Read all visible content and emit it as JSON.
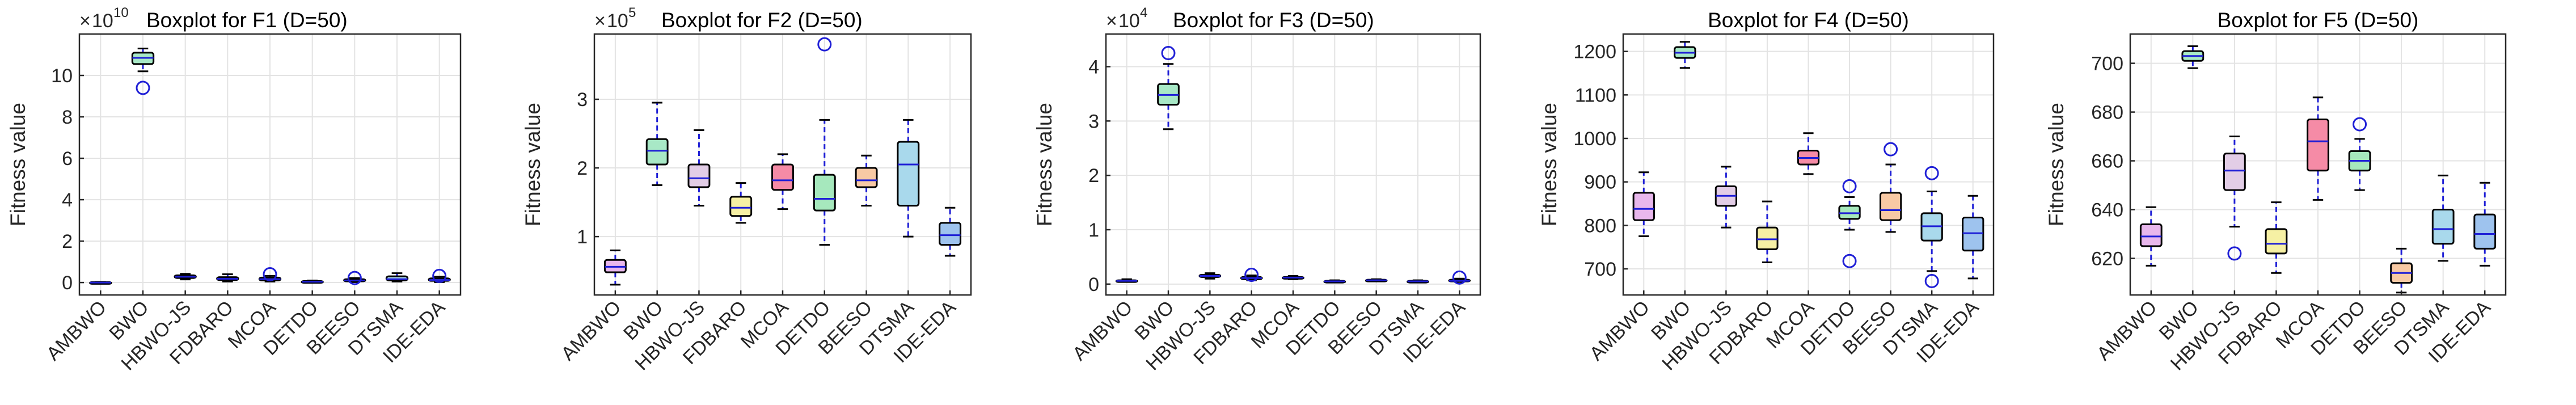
{
  "figure": {
    "ylabel": "Fitness value",
    "algorithms": [
      "AMBWO",
      "BWO",
      "HBWO-JS",
      "FDBARO",
      "MCOA",
      "DETDO",
      "BEESO",
      "DTSMA",
      "IDE-EDA"
    ],
    "box_colors": [
      "#e8b7ec",
      "#a8e8c6",
      "#e2cde6",
      "#f6f0a4",
      "#f58ba6",
      "#a6e8bd",
      "#f8c9a4",
      "#a9d9ec",
      "#9ec3ee"
    ],
    "outlier_color": "#1f1fd6",
    "whisker_color": "#1f1fd6",
    "median_color": "#1f1fd6"
  },
  "chart_data": [
    {
      "type": "box",
      "title": "Boxplot for F1 (D=50)",
      "multiplier": "10",
      "multiplier_exp": "10",
      "ylabel": "Fitness value",
      "ylim": [
        -0.6,
        12
      ],
      "yticks": [
        0,
        2,
        4,
        6,
        8,
        10
      ],
      "ytick_labels": [
        "0",
        "2",
        "4",
        "6",
        "8",
        "10"
      ],
      "categories": [
        "AMBWO",
        "BWO",
        "HBWO-JS",
        "FDBARO",
        "MCOA",
        "DETDO",
        "BEESO",
        "DTSMA",
        "IDE-EDA"
      ],
      "boxes": [
        {
          "min": 0.0,
          "q1": 0.0,
          "median": 0.0,
          "q3": 0.02,
          "max": 0.03,
          "outliers": []
        },
        {
          "min": 10.2,
          "q1": 10.55,
          "median": 10.85,
          "q3": 11.1,
          "max": 11.3,
          "outliers": [
            9.4
          ]
        },
        {
          "min": 0.15,
          "q1": 0.22,
          "median": 0.28,
          "q3": 0.35,
          "max": 0.42,
          "outliers": []
        },
        {
          "min": 0.05,
          "q1": 0.12,
          "median": 0.18,
          "q3": 0.26,
          "max": 0.4,
          "outliers": []
        },
        {
          "min": 0.05,
          "q1": 0.1,
          "median": 0.16,
          "q3": 0.24,
          "max": 0.32,
          "outliers": [
            0.4
          ]
        },
        {
          "min": 0.0,
          "q1": 0.02,
          "median": 0.04,
          "q3": 0.07,
          "max": 0.1,
          "outliers": []
        },
        {
          "min": 0.02,
          "q1": 0.06,
          "median": 0.1,
          "q3": 0.16,
          "max": 0.22,
          "outliers": [
            0.22
          ]
        },
        {
          "min": 0.05,
          "q1": 0.1,
          "median": 0.16,
          "q3": 0.3,
          "max": 0.45,
          "outliers": []
        },
        {
          "min": 0.02,
          "q1": 0.08,
          "median": 0.12,
          "q3": 0.2,
          "max": 0.28,
          "outliers": [
            0.32
          ]
        }
      ]
    },
    {
      "type": "box",
      "title": "Boxplot for F2 (D=50)",
      "multiplier": "10",
      "multiplier_exp": "5",
      "ylabel": "Fitness value",
      "ylim": [
        0.15,
        3.95
      ],
      "yticks": [
        1,
        2,
        3
      ],
      "ytick_labels": [
        "1",
        "2",
        "3"
      ],
      "categories": [
        "AMBWO",
        "BWO",
        "HBWO-JS",
        "FDBARO",
        "MCOA",
        "DETDO",
        "BEESO",
        "DTSMA",
        "IDE-EDA"
      ],
      "boxes": [
        {
          "min": 0.3,
          "q1": 0.48,
          "median": 0.56,
          "q3": 0.66,
          "max": 0.8,
          "outliers": []
        },
        {
          "min": 1.75,
          "q1": 2.05,
          "median": 2.25,
          "q3": 2.42,
          "max": 2.95,
          "outliers": []
        },
        {
          "min": 1.45,
          "q1": 1.72,
          "median": 1.85,
          "q3": 2.05,
          "max": 2.55,
          "outliers": []
        },
        {
          "min": 1.2,
          "q1": 1.3,
          "median": 1.42,
          "q3": 1.58,
          "max": 1.78,
          "outliers": []
        },
        {
          "min": 1.4,
          "q1": 1.68,
          "median": 1.82,
          "q3": 2.05,
          "max": 2.2,
          "outliers": []
        },
        {
          "min": 0.88,
          "q1": 1.38,
          "median": 1.55,
          "q3": 1.9,
          "max": 2.7,
          "outliers": [
            3.8
          ]
        },
        {
          "min": 1.45,
          "q1": 1.72,
          "median": 1.82,
          "q3": 2.0,
          "max": 2.18,
          "outliers": []
        },
        {
          "min": 1.0,
          "q1": 1.45,
          "median": 2.05,
          "q3": 2.38,
          "max": 2.7,
          "outliers": []
        },
        {
          "min": 0.72,
          "q1": 0.88,
          "median": 1.02,
          "q3": 1.2,
          "max": 1.42,
          "outliers": []
        }
      ]
    },
    {
      "type": "box",
      "title": "Boxplot for F3 (D=50)",
      "multiplier": "10",
      "multiplier_exp": "4",
      "ylabel": "Fitness value",
      "ylim": [
        -0.2,
        4.6
      ],
      "yticks": [
        0,
        1,
        2,
        3,
        4
      ],
      "ytick_labels": [
        "0",
        "1",
        "2",
        "3",
        "4"
      ],
      "categories": [
        "AMBWO",
        "BWO",
        "HBWO-JS",
        "FDBARO",
        "MCOA",
        "DETDO",
        "BEESO",
        "DTSMA",
        "IDE-EDA"
      ],
      "boxes": [
        {
          "min": 0.04,
          "q1": 0.05,
          "median": 0.06,
          "q3": 0.07,
          "max": 0.09,
          "outliers": []
        },
        {
          "min": 2.85,
          "q1": 3.3,
          "median": 3.48,
          "q3": 3.68,
          "max": 4.05,
          "outliers": [
            4.25
          ]
        },
        {
          "min": 0.1,
          "q1": 0.13,
          "median": 0.15,
          "q3": 0.17,
          "max": 0.2,
          "outliers": []
        },
        {
          "min": 0.07,
          "q1": 0.09,
          "median": 0.11,
          "q3": 0.13,
          "max": 0.16,
          "outliers": [
            0.17
          ]
        },
        {
          "min": 0.09,
          "q1": 0.11,
          "median": 0.12,
          "q3": 0.13,
          "max": 0.15,
          "outliers": []
        },
        {
          "min": 0.03,
          "q1": 0.04,
          "median": 0.05,
          "q3": 0.06,
          "max": 0.07,
          "outliers": []
        },
        {
          "min": 0.05,
          "q1": 0.06,
          "median": 0.07,
          "q3": 0.08,
          "max": 0.09,
          "outliers": []
        },
        {
          "min": 0.03,
          "q1": 0.04,
          "median": 0.05,
          "q3": 0.06,
          "max": 0.07,
          "outliers": []
        },
        {
          "min": 0.04,
          "q1": 0.05,
          "median": 0.06,
          "q3": 0.08,
          "max": 0.1,
          "outliers": [
            0.12
          ]
        }
      ]
    },
    {
      "type": "box",
      "title": "Boxplot for F4 (D=50)",
      "multiplier": "",
      "multiplier_exp": "",
      "ylabel": "Fitness value",
      "ylim": [
        640,
        1240
      ],
      "yticks": [
        700,
        800,
        900,
        1000,
        1100,
        1200
      ],
      "ytick_labels": [
        "700",
        "800",
        "900",
        "1000",
        "1100",
        "1200"
      ],
      "categories": [
        "AMBWO",
        "BWO",
        "HBWO-JS",
        "FDBARO",
        "MCOA",
        "DETDO",
        "BEESO",
        "DTSMA",
        "IDE-EDA"
      ],
      "boxes": [
        {
          "min": 775,
          "q1": 812,
          "median": 838,
          "q3": 875,
          "max": 922,
          "outliers": []
        },
        {
          "min": 1162,
          "q1": 1185,
          "median": 1197,
          "q3": 1210,
          "max": 1222,
          "outliers": []
        },
        {
          "min": 795,
          "q1": 845,
          "median": 868,
          "q3": 890,
          "max": 935,
          "outliers": []
        },
        {
          "min": 715,
          "q1": 745,
          "median": 768,
          "q3": 795,
          "max": 855,
          "outliers": []
        },
        {
          "min": 918,
          "q1": 940,
          "median": 955,
          "q3": 972,
          "max": 1012,
          "outliers": []
        },
        {
          "min": 790,
          "q1": 815,
          "median": 828,
          "q3": 845,
          "max": 865,
          "outliers": [
            718,
            890
          ]
        },
        {
          "min": 785,
          "q1": 812,
          "median": 835,
          "q3": 875,
          "max": 940,
          "outliers": [
            975
          ]
        },
        {
          "min": 695,
          "q1": 765,
          "median": 798,
          "q3": 828,
          "max": 878,
          "outliers": [
            672,
            920
          ]
        },
        {
          "min": 678,
          "q1": 742,
          "median": 782,
          "q3": 818,
          "max": 868,
          "outliers": []
        }
      ]
    },
    {
      "type": "box",
      "title": "Boxplot for F5 (D=50)",
      "multiplier": "",
      "multiplier_exp": "",
      "ylabel": "Fitness value",
      "ylim": [
        605,
        712
      ],
      "yticks": [
        620,
        640,
        660,
        680,
        700
      ],
      "ytick_labels": [
        "620",
        "640",
        "660",
        "680",
        "700"
      ],
      "categories": [
        "AMBWO",
        "BWO",
        "HBWO-JS",
        "FDBARO",
        "MCOA",
        "DETDO",
        "BEESO",
        "DTSMA",
        "IDE-EDA"
      ],
      "boxes": [
        {
          "min": 617,
          "q1": 625,
          "median": 629,
          "q3": 634,
          "max": 641,
          "outliers": []
        },
        {
          "min": 698,
          "q1": 701,
          "median": 703,
          "q3": 705,
          "max": 707,
          "outliers": []
        },
        {
          "min": 633,
          "q1": 648,
          "median": 656,
          "q3": 663,
          "max": 670,
          "outliers": [
            622
          ]
        },
        {
          "min": 614,
          "q1": 622,
          "median": 626,
          "q3": 632,
          "max": 643,
          "outliers": []
        },
        {
          "min": 644,
          "q1": 656,
          "median": 668,
          "q3": 677,
          "max": 686,
          "outliers": []
        },
        {
          "min": 648,
          "q1": 656,
          "median": 660,
          "q3": 664,
          "max": 669,
          "outliers": [
            675
          ]
        },
        {
          "min": 606,
          "q1": 610,
          "median": 614,
          "q3": 618,
          "max": 624,
          "outliers": []
        },
        {
          "min": 619,
          "q1": 626,
          "median": 632,
          "q3": 640,
          "max": 654,
          "outliers": []
        },
        {
          "min": 617,
          "q1": 624,
          "median": 630,
          "q3": 638,
          "max": 651,
          "outliers": []
        }
      ]
    }
  ]
}
